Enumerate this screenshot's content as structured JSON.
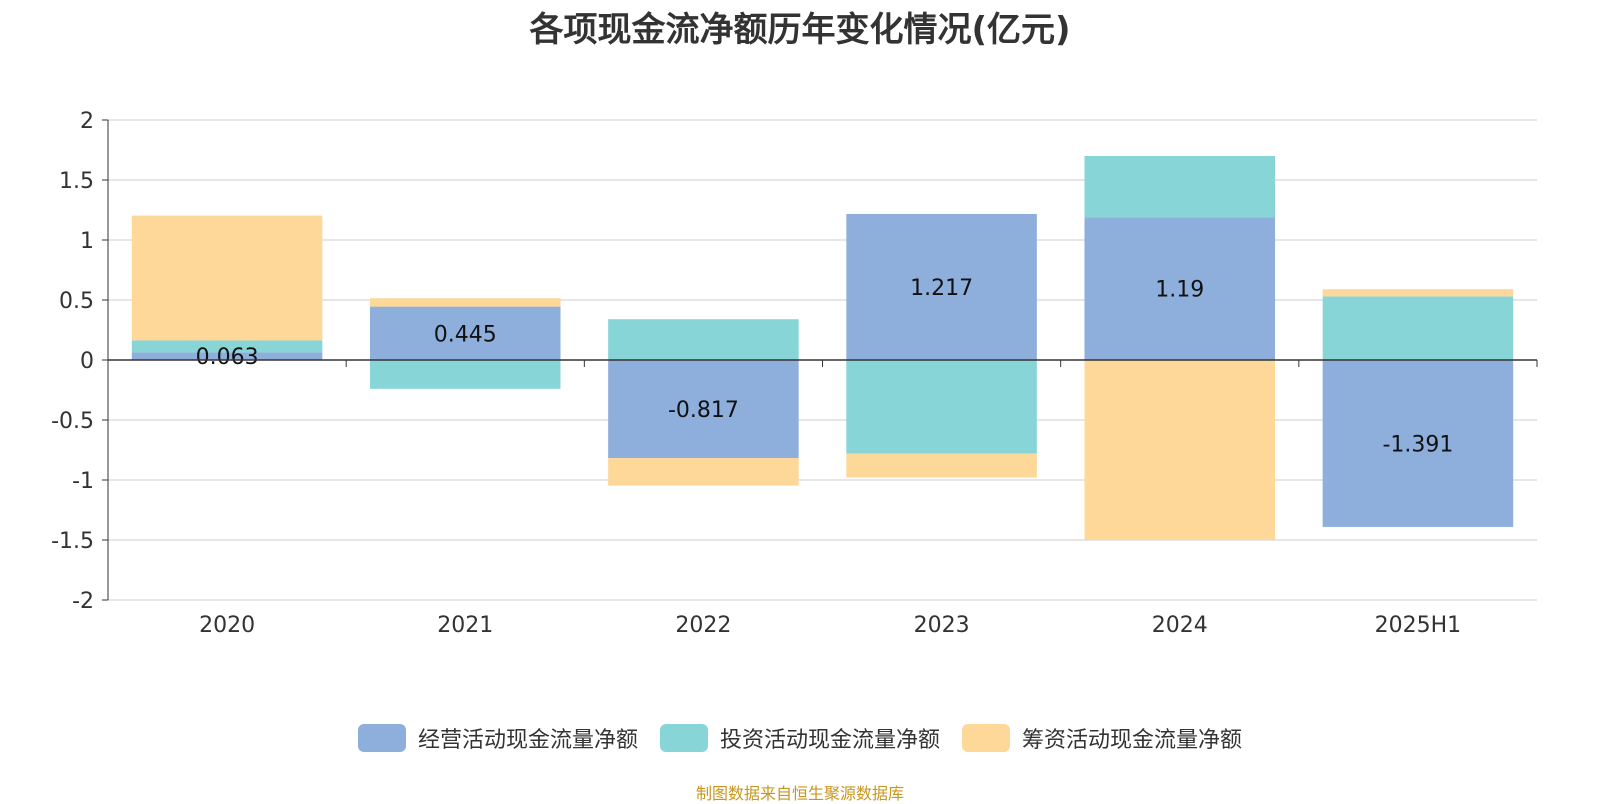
{
  "chart_data": {
    "type": "bar",
    "stacked": true,
    "title": "各项现金流净额历年变化情况(亿元)",
    "categories": [
      "2020",
      "2021",
      "2022",
      "2023",
      "2024",
      "2025H1"
    ],
    "ylim": [
      -2,
      2
    ],
    "yticks": [
      "2",
      "1.5",
      "1",
      "0.5",
      "0",
      "-0.5",
      "-1",
      "-1.5",
      "-2"
    ],
    "grid": true,
    "legend_position": "bottom-center",
    "series": [
      {
        "name": "经营活动现金流量净额",
        "color": "#8eaedb",
        "values": [
          0.063,
          0.445,
          -0.817,
          1.217,
          1.19,
          -1.391
        ],
        "labels": [
          "0.063",
          "0.445",
          "-0.817",
          "1.217",
          "1.19",
          "-1.391"
        ]
      },
      {
        "name": "投资活动现金流量净额",
        "color": "#88d5d8",
        "values": [
          0.1,
          -0.24,
          0.34,
          -0.78,
          0.51,
          0.53
        ]
      },
      {
        "name": "筹资活动现金流量净额",
        "color": "#fed898",
        "values": [
          1.04,
          0.07,
          -0.23,
          -0.2,
          -1.5,
          0.06
        ]
      }
    ]
  },
  "source_note": "制图数据来自恒生聚源数据库"
}
